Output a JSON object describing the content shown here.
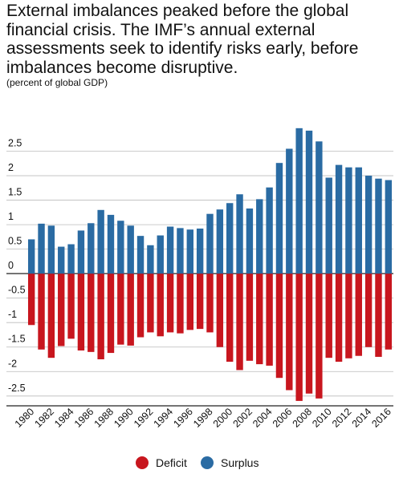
{
  "chart_data": {
    "type": "bar",
    "title": "External imbalances peaked before the global financial crisis. The IMF’s annual external assessments seek to identify risks early, before imbalances become disruptive.",
    "subtitle": "(percent of global GDP)",
    "categories": [
      "1980",
      null,
      "1982",
      null,
      "1984",
      null,
      "1986",
      null,
      "1988",
      null,
      "1990",
      null,
      "1992",
      null,
      "1994",
      null,
      "1996",
      null,
      "1998",
      null,
      "2000",
      null,
      "2002",
      null,
      "2004",
      null,
      "2006",
      null,
      "2008",
      null,
      "2010",
      null,
      "2012",
      null,
      "2014",
      null,
      "2016"
    ],
    "series": [
      {
        "name": "Deficit",
        "color": "#c8161e",
        "values": [
          -1.05,
          -1.55,
          -1.72,
          -1.48,
          -1.33,
          -1.57,
          -1.6,
          -1.75,
          -1.62,
          -1.45,
          -1.47,
          -1.3,
          -1.2,
          -1.28,
          -1.2,
          -1.22,
          -1.15,
          -1.13,
          -1.2,
          -1.5,
          -1.8,
          -1.97,
          -1.78,
          -1.85,
          -1.88,
          -2.13,
          -2.38,
          -2.6,
          -2.45,
          -2.55,
          -1.72,
          -1.8,
          -1.73,
          -1.68,
          -1.5,
          -1.7,
          -1.55
        ]
      },
      {
        "name": "Surplus",
        "color": "#2a6ba3",
        "values": [
          0.7,
          1.02,
          0.98,
          0.55,
          0.6,
          0.88,
          1.03,
          1.3,
          1.2,
          1.08,
          0.98,
          0.77,
          0.58,
          0.78,
          0.96,
          0.93,
          0.9,
          0.92,
          1.22,
          1.31,
          1.44,
          1.62,
          1.33,
          1.52,
          1.76,
          2.26,
          2.55,
          2.97,
          2.92,
          2.7,
          1.96,
          2.22,
          2.17,
          2.17,
          2.0,
          1.94,
          1.91
        ]
      }
    ],
    "stacked": true,
    "ylim": [
      -2.7,
      3.0
    ],
    "yticks": [
      -2.5,
      -2,
      -1.5,
      -1,
      -0.5,
      0,
      0.5,
      1,
      1.5,
      2,
      2.5
    ],
    "grid": true,
    "legend": "bottom"
  }
}
